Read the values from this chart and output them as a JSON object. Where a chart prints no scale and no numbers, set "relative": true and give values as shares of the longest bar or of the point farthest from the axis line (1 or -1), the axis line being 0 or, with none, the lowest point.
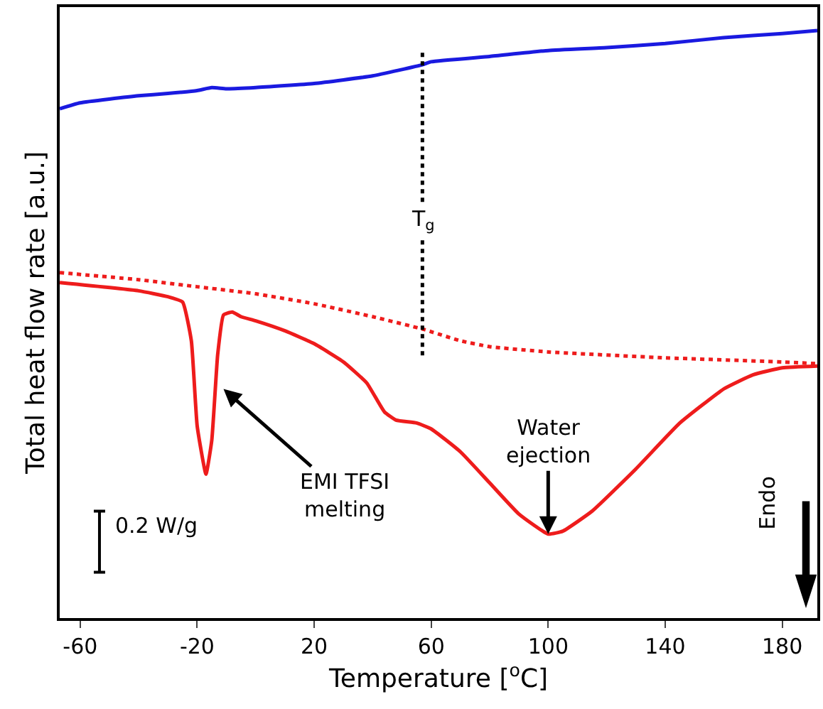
{
  "chart_data": {
    "type": "line",
    "relative": true,
    "xlabel": "Temperature [$^{o}$C]",
    "ylabel": "Total heat flow rate [a.u.]",
    "xlim": [
      -67,
      192
    ],
    "xticks": [
      -60,
      -20,
      20,
      60,
      100,
      140,
      180
    ],
    "tick_labels": "x",
    "series": [
      {
        "color": "#1a1ae0",
        "line_style": "solid",
        "x": [
          -67,
          -60,
          -40,
          -30,
          -20,
          -15,
          -10,
          0,
          20,
          40,
          57,
          60,
          80,
          100,
          120,
          140,
          160,
          180,
          192
        ],
        "values": [
          0.867,
          0.877,
          0.889,
          0.893,
          0.898,
          0.903,
          0.901,
          0.903,
          0.91,
          0.923,
          0.942,
          0.947,
          0.956,
          0.966,
          0.971,
          0.978,
          0.988,
          0.995,
          1
        ]
      },
      {
        "color": "#ee1c1c",
        "line_style": "dotted",
        "x": [
          -67,
          -40,
          -20,
          0,
          20,
          40,
          57,
          70,
          80,
          100,
          140,
          180,
          192
        ],
        "values": [
          0.588,
          0.576,
          0.564,
          0.552,
          0.535,
          0.513,
          0.492,
          0.472,
          0.462,
          0.453,
          0.443,
          0.436,
          0.433
        ]
      },
      {
        "color": "#ee1c1c",
        "line_style": "solid",
        "x": [
          -67,
          -40,
          -30,
          -25,
          -22,
          -20,
          -17,
          -15,
          -13,
          -11,
          -8,
          -5,
          0,
          10,
          20,
          30,
          38,
          44,
          48,
          55,
          60,
          70,
          80,
          90,
          100,
          105,
          115,
          130,
          145,
          160,
          170,
          180,
          192
        ],
        "values": [
          0.571,
          0.557,
          0.547,
          0.538,
          0.472,
          0.327,
          0.245,
          0.303,
          0.448,
          0.516,
          0.521,
          0.513,
          0.506,
          0.489,
          0.467,
          0.436,
          0.4,
          0.351,
          0.337,
          0.332,
          0.322,
          0.283,
          0.23,
          0.177,
          0.143,
          0.148,
          0.182,
          0.254,
          0.332,
          0.39,
          0.414,
          0.426,
          0.429
        ]
      }
    ],
    "ref_lines": [
      {
        "axis": "x",
        "value": 57,
        "label": "T$_{g}$",
        "color": "#000000",
        "line_style": "dotted"
      }
    ],
    "annotations": [
      {
        "text": "Water\nejection",
        "x": 100,
        "y": 0.143
      },
      {
        "text": "EMI TFSI\nmelting",
        "x": -11,
        "y": 0.39
      },
      "0.2 W/g",
      "Endo"
    ]
  }
}
